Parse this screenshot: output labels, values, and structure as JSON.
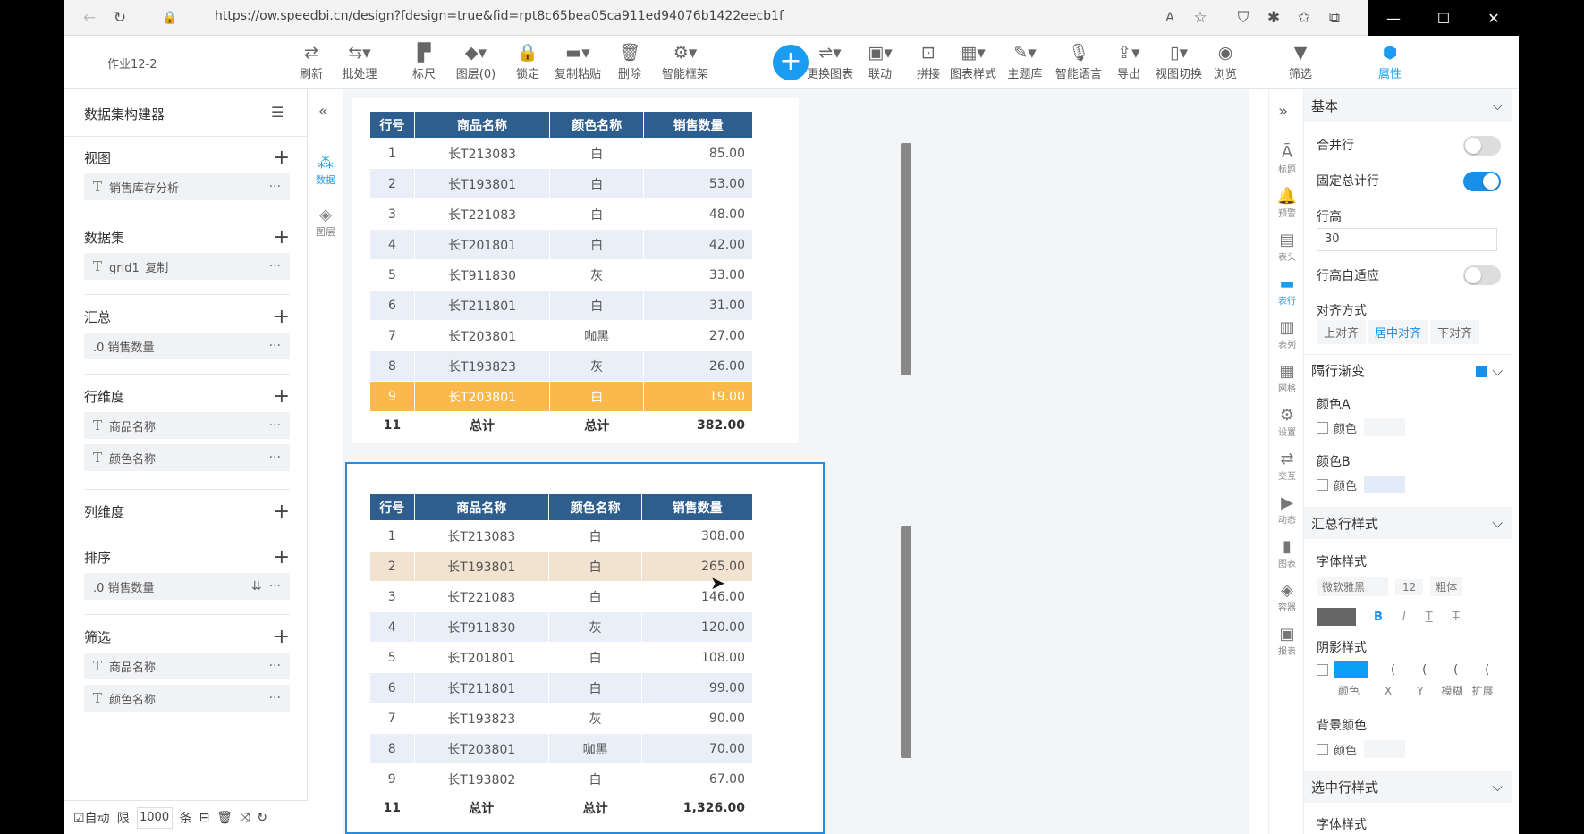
{
  "browser": {
    "url": "https://ow.speedbi.cn/design?fdesign=true&fid=rpt8c65bea05ca911ed94076b1422eecb1f"
  },
  "toolbar": {
    "doc_title": "作业12-2",
    "tools": [
      "刷新",
      "批处理",
      "标尺",
      "图层(0)",
      "锁定",
      "复制粘贴",
      "删除",
      "智能框架",
      "更换图表",
      "联动",
      "拼接",
      "图表样式",
      "主题库",
      "智能语言",
      "导出",
      "视图切换",
      "浏览",
      "筛选",
      "属性"
    ]
  },
  "left_panel": {
    "title": "数据集构建器",
    "sections": {
      "view": {
        "label": "视图",
        "items": [
          "销售库存分析"
        ]
      },
      "dataset": {
        "label": "数据集",
        "items": [
          "grid1_复制"
        ]
      },
      "summary": {
        "label": "汇总",
        "items": [
          ".0 销售数量"
        ]
      },
      "row_dim": {
        "label": "行维度",
        "items": [
          "商品名称",
          "颜色名称"
        ]
      },
      "col_dim": {
        "label": "列维度"
      },
      "sort": {
        "label": "排序",
        "items": [
          ".0 销售数量"
        ]
      },
      "filter": {
        "label": "筛选",
        "items": [
          "商品名称",
          "颜色名称"
        ]
      }
    },
    "bottom": {
      "auto": "☑自动",
      "limit_label": "限",
      "limit_value": "1000",
      "unit": "条"
    }
  },
  "navcol": {
    "data": "数据",
    "layers": "图层"
  },
  "tables": {
    "headers": [
      "行号",
      "商品名称",
      "颜色名称",
      "销售数量"
    ],
    "top": {
      "rows": [
        [
          "1",
          "长T213083",
          "白",
          "85.00"
        ],
        [
          "2",
          "长T193801",
          "白",
          "53.00"
        ],
        [
          "3",
          "长T221083",
          "白",
          "48.00"
        ],
        [
          "4",
          "长T201801",
          "白",
          "42.00"
        ],
        [
          "5",
          "长T911830",
          "灰",
          "33.00"
        ],
        [
          "6",
          "长T211801",
          "白",
          "31.00"
        ],
        [
          "7",
          "长T203801",
          "咖黑",
          "27.00"
        ],
        [
          "8",
          "长T193823",
          "灰",
          "26.00"
        ],
        [
          "9",
          "长T203801",
          "白",
          "19.00"
        ]
      ],
      "total": [
        "11",
        "总计",
        "总计",
        "382.00"
      ]
    },
    "bottom": {
      "rows": [
        [
          "1",
          "长T213083",
          "白",
          "308.00"
        ],
        [
          "2",
          "长T193801",
          "白",
          "265.00"
        ],
        [
          "3",
          "长T221083",
          "白",
          "146.00"
        ],
        [
          "4",
          "长T911830",
          "灰",
          "120.00"
        ],
        [
          "5",
          "长T201801",
          "白",
          "108.00"
        ],
        [
          "6",
          "长T211801",
          "白",
          "99.00"
        ],
        [
          "7",
          "长T193823",
          "灰",
          "90.00"
        ],
        [
          "8",
          "长T203801",
          "咖黑",
          "70.00"
        ],
        [
          "9",
          "长T193802",
          "白",
          "67.00"
        ]
      ],
      "total": [
        "11",
        "总计",
        "总计",
        "1,326.00"
      ]
    }
  },
  "right_strip": [
    "标题",
    "预警",
    "表头",
    "表行",
    "表列",
    "网格",
    "设置",
    "交互",
    "动态",
    "图表",
    "容器",
    "报表"
  ],
  "props": {
    "basic": "基本",
    "merge_rows": "合并行",
    "fixed_total": "固定总计行",
    "row_height_label": "行高",
    "row_height": "30",
    "row_auto": "行高自适应",
    "align_label": "对齐方式",
    "align_options": [
      "上对齐",
      "居中对齐",
      "下对齐"
    ],
    "gradient": "隔行渐变",
    "color_a": "颜色A",
    "color_b": "颜色B",
    "color": "颜色",
    "total_style": "汇总行样式",
    "font_style": "字体样式",
    "font_name": "微软雅黑",
    "font_size": "12",
    "font_weight": "粗体",
    "shadow_style": "阴影样式",
    "shadow_labels": [
      "颜色",
      "X",
      "Y",
      "模糊",
      "扩展"
    ],
    "bg_color": "背景颜色",
    "selected_style": "选中行样式",
    "font_style2": "字体样式"
  },
  "colors": {
    "accent": "#1a8fe8",
    "header": "#2e5e8e",
    "highlight": "#fbb84b"
  }
}
